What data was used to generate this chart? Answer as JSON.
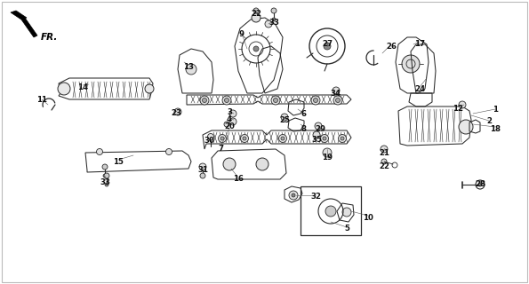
{
  "bg_color": "#ffffff",
  "border_color": "#bbbbbb",
  "drawing_color": "#2a2a2a",
  "label_color": "#111111",
  "fr_label": "FR.",
  "labels": [
    [
      557,
      197,
      "1"
    ],
    [
      550,
      184,
      "2"
    ],
    [
      258,
      194,
      "3"
    ],
    [
      258,
      186,
      "4"
    ],
    [
      390,
      62,
      "5"
    ],
    [
      342,
      192,
      "6"
    ],
    [
      248,
      153,
      "7"
    ],
    [
      342,
      175,
      "8"
    ],
    [
      272,
      282,
      "9"
    ],
    [
      414,
      75,
      "10"
    ],
    [
      47,
      208,
      "11"
    ],
    [
      515,
      198,
      "12"
    ],
    [
      212,
      245,
      "13"
    ],
    [
      93,
      222,
      "14"
    ],
    [
      133,
      138,
      "15"
    ],
    [
      268,
      118,
      "16"
    ],
    [
      472,
      271,
      "17"
    ],
    [
      557,
      175,
      "18"
    ],
    [
      368,
      143,
      "19"
    ],
    [
      258,
      178,
      "20"
    ],
    [
      432,
      148,
      "21"
    ],
    [
      432,
      133,
      "22"
    ],
    [
      198,
      193,
      "23"
    ],
    [
      472,
      220,
      "24"
    ],
    [
      320,
      185,
      "25"
    ],
    [
      440,
      268,
      "26"
    ],
    [
      368,
      271,
      "27"
    ],
    [
      540,
      112,
      "28"
    ],
    [
      360,
      175,
      "29"
    ],
    [
      235,
      162,
      "30"
    ],
    [
      228,
      128,
      "31"
    ],
    [
      355,
      98,
      "32"
    ],
    [
      118,
      115,
      "33"
    ],
    [
      378,
      215,
      "34"
    ],
    [
      356,
      163,
      "35"
    ],
    [
      288,
      305,
      "22"
    ],
    [
      308,
      295,
      "33"
    ]
  ]
}
